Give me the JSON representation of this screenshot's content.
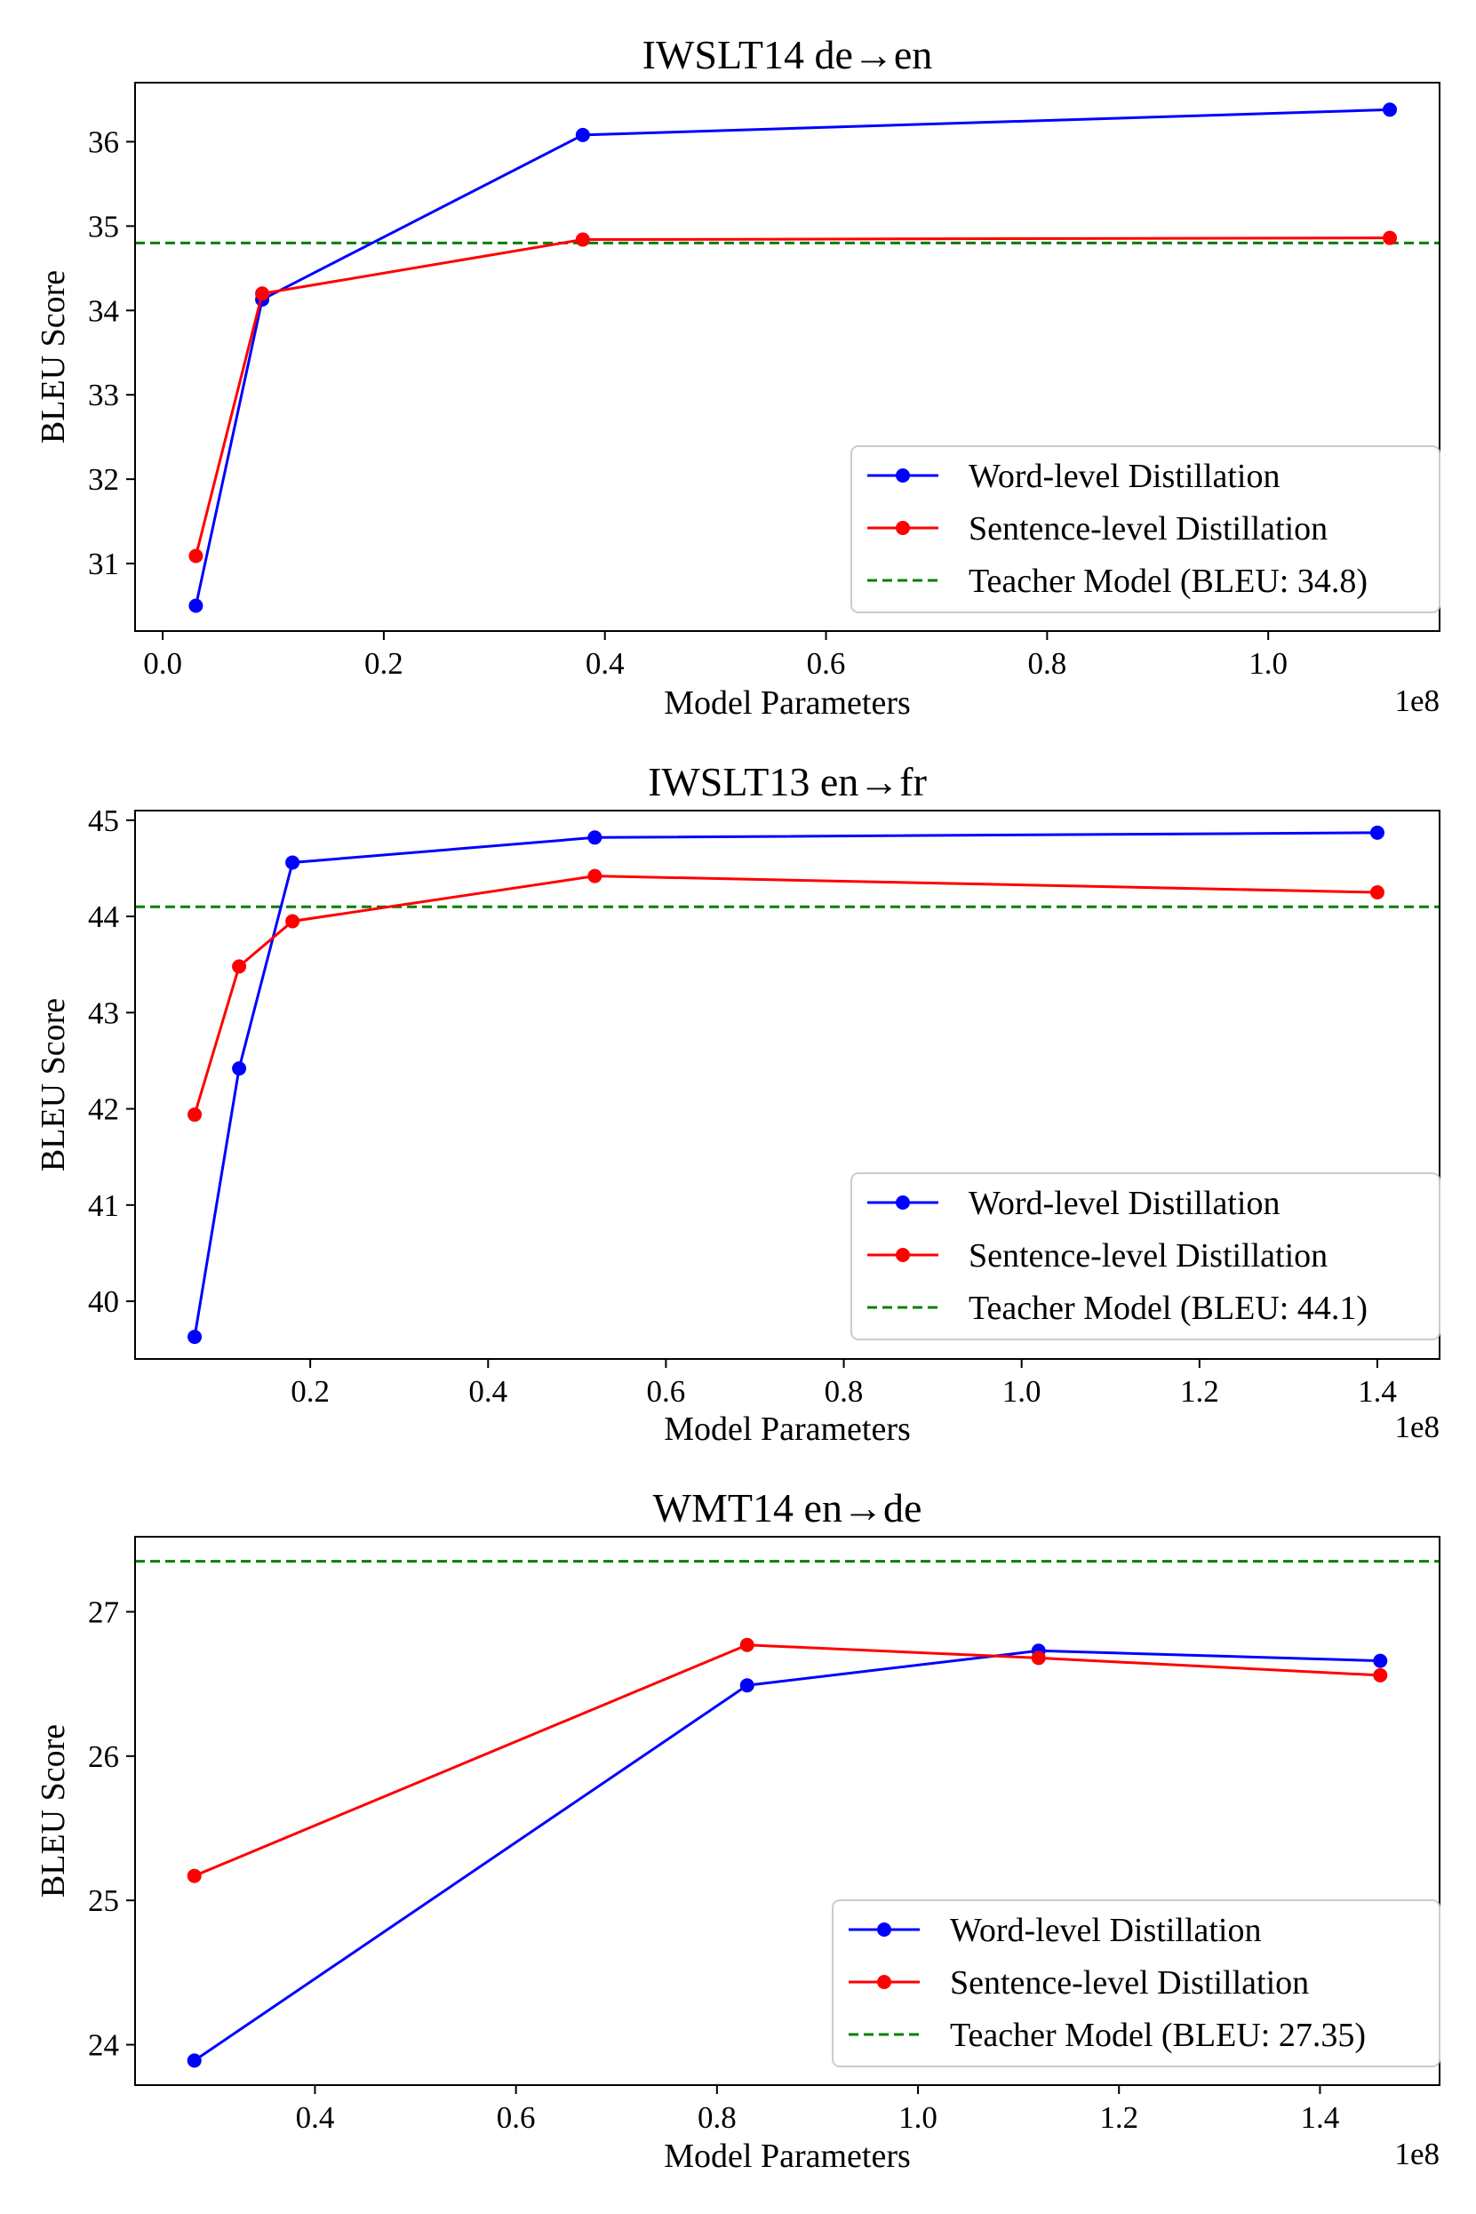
{
  "chart_data": [
    {
      "type": "line",
      "title": "IWSLT14 de→en",
      "xlabel": "Model Parameters",
      "ylabel": "BLEU Score",
      "x_offset_label": "1e8",
      "xlim": [
        -0.025,
        1.155
      ],
      "ylim": [
        30.2,
        36.7
      ],
      "xticks": [
        0.0,
        0.2,
        0.4,
        0.6,
        0.8,
        1.0
      ],
      "xtick_labels": [
        "0.0",
        "0.2",
        "0.4",
        "0.6",
        "0.8",
        "1.0"
      ],
      "yticks": [
        31,
        32,
        33,
        34,
        35,
        36
      ],
      "ytick_labels": [
        "31",
        "32",
        "33",
        "34",
        "35",
        "36"
      ],
      "legend_position": "lower-right",
      "series": [
        {
          "name": "Word-level Distillation",
          "color": "#0000ff",
          "x": [
            0.03,
            0.09,
            0.38,
            1.11
          ],
          "y": [
            30.5,
            34.13,
            36.08,
            36.38
          ]
        },
        {
          "name": "Sentence-level Distillation",
          "color": "#ff0000",
          "x": [
            0.03,
            0.09,
            0.38,
            1.11
          ],
          "y": [
            31.09,
            34.2,
            34.84,
            34.86
          ]
        }
      ],
      "reference": {
        "name": "Teacher Model (BLEU: 34.8)",
        "color": "#008000",
        "value": 34.8
      }
    },
    {
      "type": "line",
      "title": "IWSLT13 en→fr",
      "xlabel": "Model Parameters",
      "ylabel": "BLEU Score",
      "x_offset_label": "1e8",
      "xlim": [
        0.003,
        1.47
      ],
      "ylim": [
        39.4,
        45.1
      ],
      "xticks": [
        0.2,
        0.4,
        0.6,
        0.8,
        1.0,
        1.2,
        1.4
      ],
      "xtick_labels": [
        "0.2",
        "0.4",
        "0.6",
        "0.8",
        "1.0",
        "1.2",
        "1.4"
      ],
      "yticks": [
        40,
        41,
        42,
        43,
        44,
        45
      ],
      "ytick_labels": [
        "40",
        "41",
        "42",
        "43",
        "44",
        "45"
      ],
      "legend_position": "lower-right",
      "series": [
        {
          "name": "Word-level Distillation",
          "color": "#0000ff",
          "x": [
            0.07,
            0.12,
            0.18,
            0.52,
            1.4
          ],
          "y": [
            39.63,
            42.42,
            44.56,
            44.82,
            44.87
          ]
        },
        {
          "name": "Sentence-level Distillation",
          "color": "#ff0000",
          "x": [
            0.07,
            0.12,
            0.18,
            0.52,
            1.4
          ],
          "y": [
            41.94,
            43.48,
            43.95,
            44.42,
            44.25
          ]
        }
      ],
      "reference": {
        "name": "Teacher Model (BLEU: 44.1)",
        "color": "#008000",
        "value": 44.1
      }
    },
    {
      "type": "line",
      "title": "WMT14 en→de",
      "xlabel": "Model Parameters",
      "ylabel": "BLEU Score",
      "x_offset_label": "1e8",
      "xlim": [
        0.221,
        1.519
      ],
      "ylim": [
        23.72,
        27.52
      ],
      "xticks": [
        0.4,
        0.6,
        0.8,
        1.0,
        1.2,
        1.4
      ],
      "xtick_labels": [
        "0.4",
        "0.6",
        "0.8",
        "1.0",
        "1.2",
        "1.4"
      ],
      "yticks": [
        24,
        25,
        26,
        27
      ],
      "ytick_labels": [
        "24",
        "25",
        "26",
        "27"
      ],
      "legend_position": "lower-right",
      "series": [
        {
          "name": "Word-level Distillation",
          "color": "#0000ff",
          "x": [
            0.28,
            0.83,
            1.12,
            1.46
          ],
          "y": [
            23.89,
            26.49,
            26.73,
            26.66
          ]
        },
        {
          "name": "Sentence-level Distillation",
          "color": "#ff0000",
          "x": [
            0.28,
            0.83,
            1.12,
            1.46
          ],
          "y": [
            25.17,
            26.77,
            26.68,
            26.56
          ]
        }
      ],
      "reference": {
        "name": "Teacher Model (BLEU: 27.35)",
        "color": "#008000",
        "value": 27.35
      }
    }
  ]
}
